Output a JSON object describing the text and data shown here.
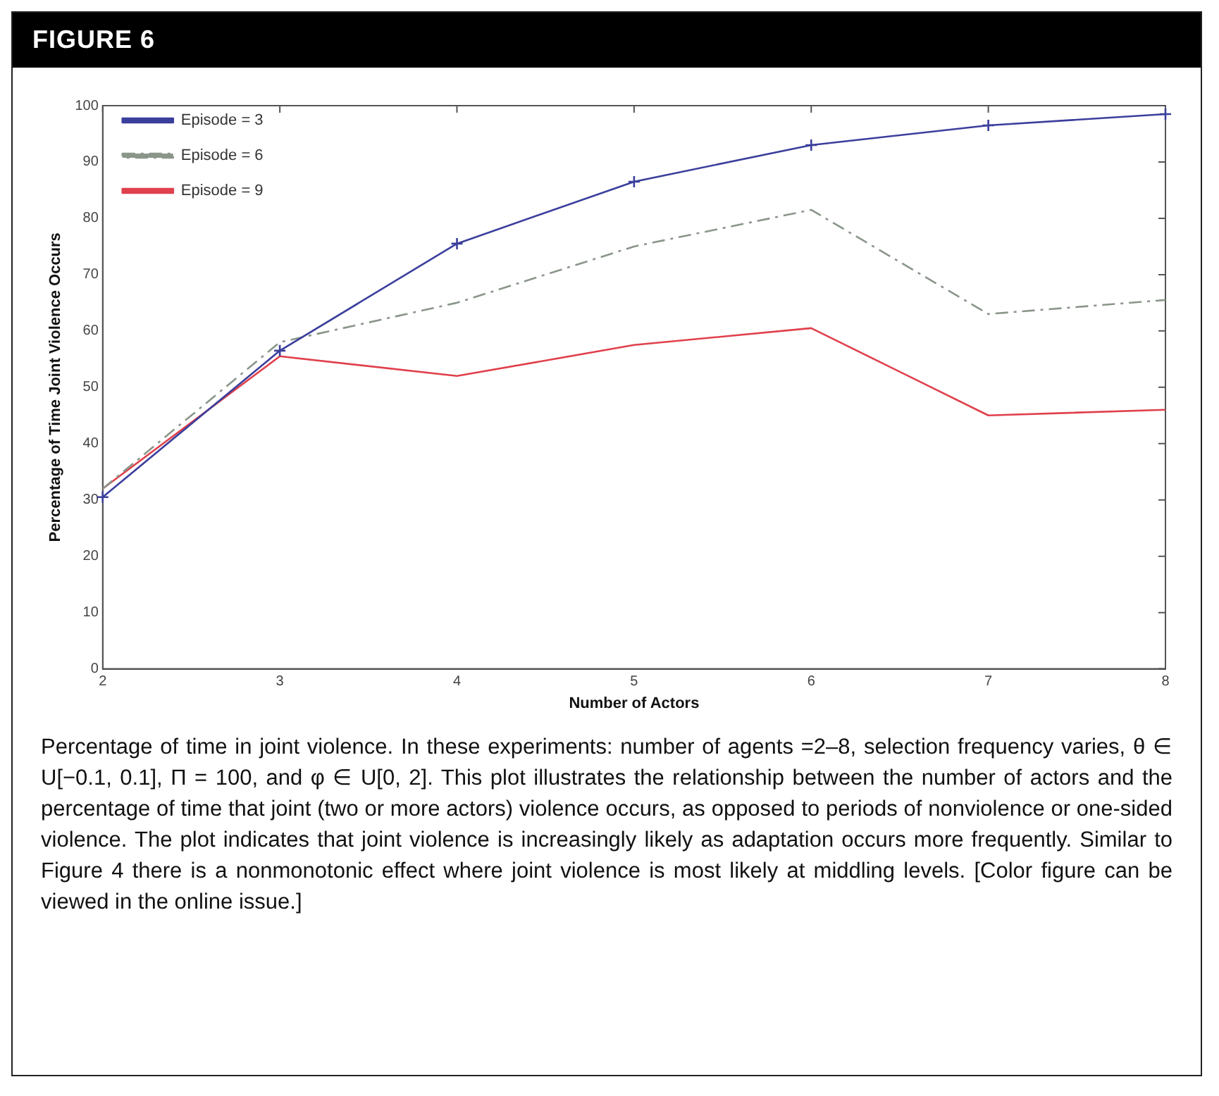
{
  "chart_data": {
    "type": "line",
    "title": "FIGURE 6",
    "xlabel": "Number of Actors",
    "ylabel": "Percentage of Time Joint Violence Occurs",
    "x": [
      2,
      3,
      4,
      5,
      6,
      7,
      8
    ],
    "series": [
      {
        "name": "Episode = 3",
        "color": "#3b3f9c",
        "values": [
          30.5,
          56.5,
          75.5,
          86.5,
          93,
          96.5,
          98.5
        ],
        "marker": "cross",
        "line_style": "solid"
      },
      {
        "name": "Episode = 6",
        "color": "#8a968a",
        "values": [
          32,
          58,
          65,
          75,
          81.5,
          63,
          65.5
        ],
        "marker": "none",
        "line_style": "dashed"
      },
      {
        "name": "Episode = 9",
        "color": "#e0404c",
        "values": [
          32,
          55.5,
          52,
          57.5,
          60.5,
          45,
          46
        ],
        "marker": "none",
        "line_style": "solid"
      }
    ],
    "xlim": [
      2,
      8
    ],
    "xticks": [
      2,
      3,
      4,
      5,
      6,
      7,
      8
    ],
    "ylim": [
      0,
      100
    ],
    "yticks": [
      0,
      10,
      20,
      30,
      40,
      50,
      60,
      70,
      80,
      90,
      100
    ],
    "grid": false,
    "legend": "top left",
    "annotations": [
      "Percentage of time in joint violence. In these experiments: number of agents =2–8, selection frequency varies, θ ∈ U[−0.1, 0.1], Π = 100, and φ ∈ U[0, 2]. This plot illustrates the relationship between the number of actors and the percentage of time that joint (two or more actors) violence occurs, as opposed to periods of nonviolence or one-sided violence. The plot indicates that joint violence is increasingly likely as adaptation occurs more frequently. Similar to Figure 4 there is a nonmonotonic effect where joint violence is most likely at middling levels. [Color figure can be viewed in the online issue.]"
    ]
  }
}
